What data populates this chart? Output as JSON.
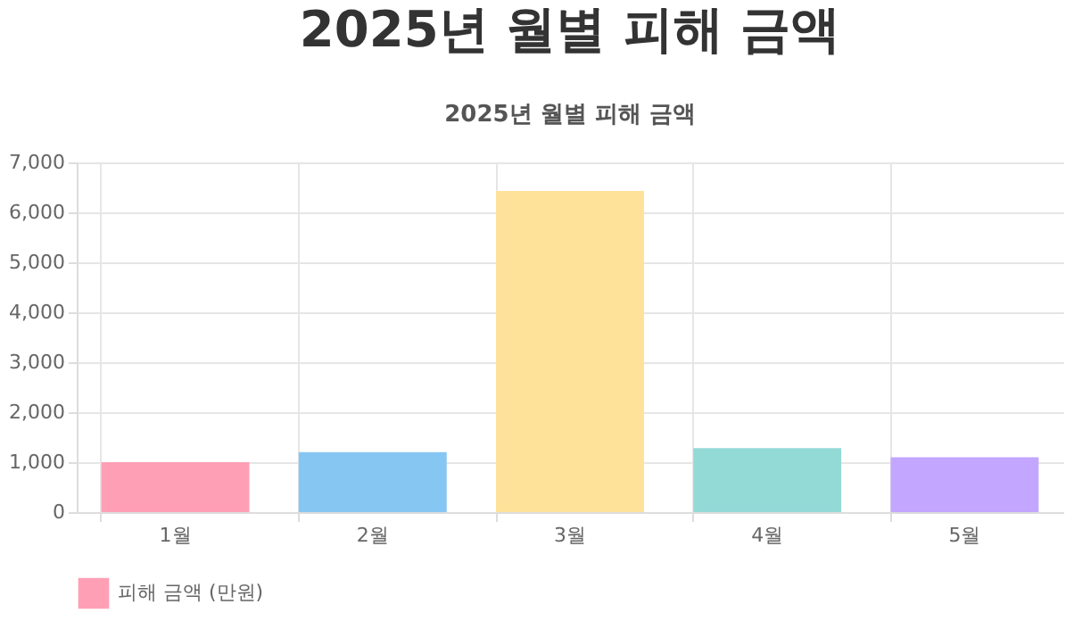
{
  "chart_data": {
    "type": "bar",
    "title": "2025년 월별 피해 금액",
    "subtitle": "2025년 월별 피해 금액",
    "categories": [
      "1월",
      "2월",
      "3월",
      "4월",
      "5월"
    ],
    "series": [
      {
        "name": "피해 금액 (만원)",
        "values": [
          1000,
          1200,
          6430,
          1280,
          1100
        ],
        "colors": [
          "#ff9fb5",
          "#86c6f2",
          "#ffe29a",
          "#93d9d6",
          "#c3a6ff"
        ]
      }
    ],
    "ylim": [
      0,
      7000
    ],
    "yticks": [
      0,
      {
        "value": 1000,
        "label": "1,000"
      },
      {
        "value": 2000,
        "label": "2,000"
      },
      {
        "value": 3000,
        "label": "3,000"
      },
      {
        "value": 4000,
        "label": "4,000"
      },
      {
        "value": 5000,
        "label": "5,000"
      },
      {
        "value": 6000,
        "label": "6,000"
      },
      {
        "value": 7000,
        "label": "7,000"
      }
    ],
    "grid": true,
    "legend": "bottom"
  }
}
